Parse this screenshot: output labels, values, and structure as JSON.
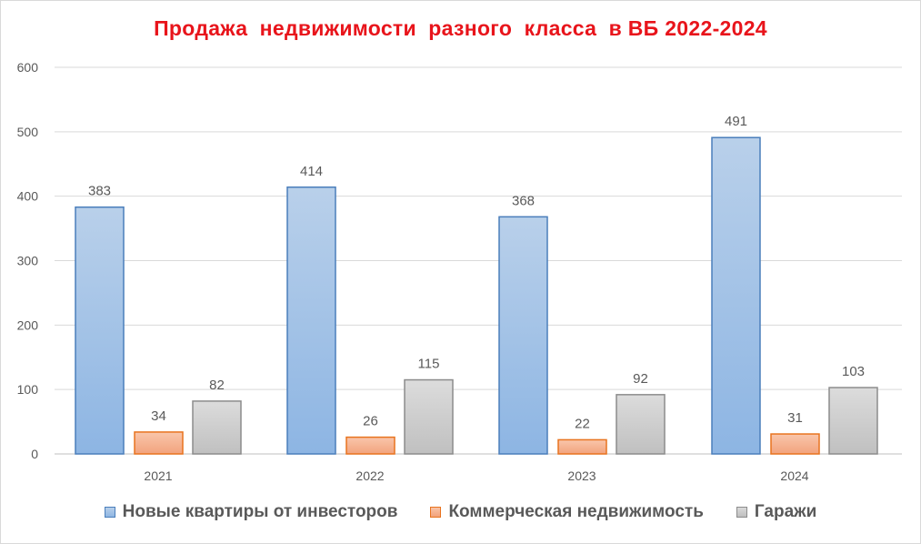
{
  "chart_data": {
    "type": "bar",
    "title": "Продажа  недвижимости  разного  класса  в ВБ 2022-2024",
    "categories": [
      "2021",
      "2022",
      "2023",
      "2024"
    ],
    "series": [
      {
        "name": "Новые квартиры от инвесторов",
        "values": [
          383,
          414,
          368,
          491
        ],
        "color": "#9dbfe6"
      },
      {
        "name": "Коммерческая недвижимость",
        "values": [
          34,
          26,
          22,
          31
        ],
        "color": "#f5ae8b"
      },
      {
        "name": "Гаражи",
        "values": [
          82,
          115,
          92,
          103
        ],
        "color": "#cccccc"
      }
    ],
    "y_ticks": [
      "0",
      "100",
      "200",
      "300",
      "400",
      "500",
      "600"
    ],
    "ylim": [
      0,
      600
    ],
    "grid": true,
    "legend_position": "bottom",
    "data_labels": true
  }
}
